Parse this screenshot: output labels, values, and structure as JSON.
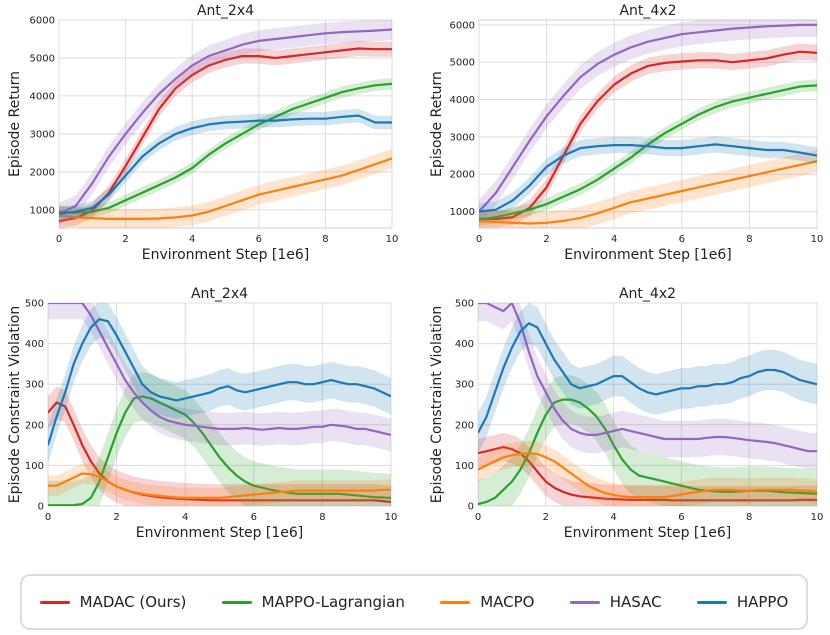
{
  "chart_data": [
    {
      "type": "line",
      "title": "Ant_2x4",
      "xlabel": "Environment Step [1e6]",
      "ylabel": "Episode Return",
      "xlim": [
        0,
        10
      ],
      "ylim": [
        520,
        6000
      ],
      "xticks": [
        "0",
        "2",
        "4",
        "6",
        "8",
        "10"
      ],
      "yticks": [
        "1000",
        "2000",
        "3000",
        "4000",
        "5000",
        "6000"
      ],
      "grid": true,
      "x": [
        0,
        0.5,
        1,
        1.5,
        2,
        2.5,
        3,
        3.5,
        4,
        4.5,
        5,
        5.5,
        6,
        6.5,
        7,
        7.5,
        8,
        8.5,
        9,
        9.5,
        10
      ],
      "series": [
        {
          "name": "MADAC (Ours)",
          "values": [
            700,
            780,
            980,
            1450,
            2150,
            2900,
            3650,
            4200,
            4550,
            4800,
            4950,
            5050,
            5050,
            5000,
            5050,
            5100,
            5150,
            5200,
            5250,
            5230,
            5230
          ],
          "band": 200
        },
        {
          "name": "MAPPO-Lagrangian",
          "values": [
            950,
            920,
            950,
            1050,
            1250,
            1450,
            1650,
            1850,
            2100,
            2450,
            2750,
            3000,
            3250,
            3450,
            3650,
            3800,
            3950,
            4100,
            4200,
            4280,
            4320
          ],
          "band": 150
        },
        {
          "name": "MACPO",
          "values": [
            850,
            800,
            780,
            760,
            760,
            760,
            770,
            800,
            850,
            950,
            1100,
            1250,
            1400,
            1500,
            1600,
            1700,
            1800,
            1900,
            2050,
            2200,
            2350
          ],
          "band": 260
        },
        {
          "name": "HASAC",
          "values": [
            900,
            1100,
            1700,
            2400,
            3000,
            3550,
            4050,
            4450,
            4800,
            5050,
            5200,
            5350,
            5450,
            5500,
            5550,
            5600,
            5650,
            5680,
            5700,
            5720,
            5750
          ],
          "band": 280
        },
        {
          "name": "HAPPO",
          "values": [
            900,
            950,
            1050,
            1400,
            1900,
            2400,
            2750,
            3000,
            3150,
            3250,
            3300,
            3320,
            3350,
            3350,
            3380,
            3400,
            3400,
            3450,
            3480,
            3300,
            3300
          ],
          "band": 180
        }
      ]
    },
    {
      "type": "line",
      "title": "Ant_4x2",
      "xlabel": "Environment Step [1e6]",
      "ylabel": "Episode Return",
      "xlim": [
        0,
        10
      ],
      "ylim": [
        560,
        6130
      ],
      "xticks": [
        "0",
        "2",
        "4",
        "6",
        "8",
        "10"
      ],
      "yticks": [
        "1000",
        "2000",
        "3000",
        "4000",
        "5000",
        "6000"
      ],
      "grid": true,
      "x": [
        0,
        0.5,
        1,
        1.5,
        2,
        2.5,
        3,
        3.5,
        4,
        4.5,
        5,
        5.5,
        6,
        6.5,
        7,
        7.5,
        8,
        8.5,
        9,
        9.5,
        10
      ],
      "series": [
        {
          "name": "MADAC (Ours)",
          "values": [
            800,
            800,
            850,
            1100,
            1650,
            2500,
            3350,
            3950,
            4400,
            4700,
            4900,
            4980,
            5020,
            5050,
            5050,
            5000,
            5050,
            5100,
            5200,
            5280,
            5250
          ],
          "band": 220
        },
        {
          "name": "MAPPO-Lagrangian",
          "values": [
            780,
            850,
            950,
            1050,
            1200,
            1400,
            1600,
            1850,
            2150,
            2450,
            2800,
            3100,
            3350,
            3600,
            3800,
            3950,
            4050,
            4150,
            4250,
            4350,
            4380
          ],
          "band": 160
        },
        {
          "name": "MACPO",
          "values": [
            750,
            720,
            700,
            680,
            700,
            750,
            830,
            950,
            1100,
            1250,
            1350,
            1450,
            1550,
            1650,
            1750,
            1850,
            1950,
            2050,
            2150,
            2250,
            2350
          ],
          "band": 300
        },
        {
          "name": "HASAC",
          "values": [
            1000,
            1500,
            2200,
            2900,
            3550,
            4100,
            4600,
            4950,
            5200,
            5400,
            5550,
            5650,
            5750,
            5800,
            5850,
            5900,
            5930,
            5960,
            5980,
            6000,
            6000
          ],
          "band": 320
        },
        {
          "name": "HAPPO",
          "values": [
            1000,
            1050,
            1300,
            1700,
            2200,
            2500,
            2700,
            2750,
            2780,
            2780,
            2750,
            2700,
            2700,
            2750,
            2800,
            2750,
            2700,
            2650,
            2650,
            2580,
            2500
          ],
          "band": 220
        }
      ]
    },
    {
      "type": "line",
      "title": "Ant_2x4",
      "xlabel": "Environment Step [1e6]",
      "ylabel": "Episode Constraint Violation",
      "xlim": [
        0,
        10
      ],
      "ylim": [
        0,
        500
      ],
      "xticks": [
        "0",
        "2",
        "4",
        "6",
        "8",
        "10"
      ],
      "yticks": [
        "0",
        "100",
        "200",
        "300",
        "400",
        "500"
      ],
      "grid": true,
      "x": [
        0,
        0.25,
        0.5,
        0.75,
        1,
        1.25,
        1.5,
        1.75,
        2,
        2.25,
        2.5,
        2.75,
        3,
        3.25,
        3.5,
        3.75,
        4,
        4.25,
        4.5,
        4.75,
        5,
        5.25,
        5.5,
        5.75,
        6,
        6.25,
        6.5,
        6.75,
        7,
        7.25,
        7.5,
        7.75,
        8,
        8.25,
        8.5,
        8.75,
        9,
        9.25,
        9.5,
        9.75,
        10
      ],
      "series": [
        {
          "name": "MADAC (Ours)",
          "values": [
            230,
            255,
            245,
            200,
            150,
            110,
            80,
            60,
            48,
            40,
            33,
            28,
            25,
            22,
            20,
            18,
            17,
            16,
            15,
            14,
            14,
            14,
            14,
            14,
            14,
            14,
            14,
            14,
            14,
            14,
            14,
            14,
            14,
            14,
            14,
            14,
            14,
            14,
            14,
            12,
            10
          ],
          "band": 40
        },
        {
          "name": "MAPPO-Lagrangian",
          "values": [
            2,
            2,
            2,
            2,
            5,
            20,
            60,
            120,
            180,
            230,
            265,
            270,
            265,
            255,
            245,
            235,
            225,
            205,
            180,
            150,
            120,
            95,
            75,
            60,
            50,
            45,
            40,
            36,
            33,
            30,
            30,
            30,
            30,
            30,
            30,
            28,
            26,
            24,
            22,
            21,
            20
          ],
          "band": 60
        },
        {
          "name": "MACPO",
          "values": [
            50,
            50,
            60,
            70,
            80,
            78,
            72,
            60,
            48,
            40,
            34,
            30,
            27,
            25,
            23,
            21,
            20,
            20,
            20,
            20,
            20,
            22,
            24,
            26,
            28,
            30,
            32,
            34,
            36,
            38,
            38,
            38,
            38,
            38,
            38,
            38,
            38,
            38,
            38,
            40,
            40
          ],
          "band": 25
        },
        {
          "name": "HASAC",
          "values": [
            500,
            500,
            500,
            500,
            500,
            470,
            430,
            390,
            350,
            310,
            280,
            255,
            235,
            220,
            210,
            205,
            200,
            198,
            195,
            192,
            190,
            190,
            190,
            192,
            190,
            188,
            190,
            192,
            190,
            190,
            192,
            195,
            195,
            200,
            198,
            195,
            190,
            190,
            185,
            180,
            175
          ],
          "band": 40
        },
        {
          "name": "HAPPO",
          "values": [
            150,
            220,
            280,
            350,
            400,
            440,
            460,
            455,
            420,
            380,
            340,
            300,
            280,
            270,
            265,
            260,
            265,
            270,
            275,
            280,
            290,
            295,
            285,
            280,
            285,
            290,
            295,
            300,
            305,
            305,
            300,
            300,
            305,
            310,
            305,
            300,
            300,
            295,
            290,
            280,
            270
          ],
          "band": 45
        }
      ]
    },
    {
      "type": "line",
      "title": "Ant_4x2",
      "xlabel": "Environment Step [1e6]",
      "ylabel": "Episode Constraint Violation",
      "xlim": [
        0,
        10
      ],
      "ylim": [
        0,
        500
      ],
      "xticks": [
        "0",
        "2",
        "4",
        "6",
        "8",
        "10"
      ],
      "yticks": [
        "0",
        "100",
        "200",
        "300",
        "400",
        "500"
      ],
      "grid": true,
      "x": [
        0,
        0.25,
        0.5,
        0.75,
        1,
        1.25,
        1.5,
        1.75,
        2,
        2.25,
        2.5,
        2.75,
        3,
        3.25,
        3.5,
        3.75,
        4,
        4.25,
        4.5,
        4.75,
        5,
        5.25,
        5.5,
        5.75,
        6,
        6.25,
        6.5,
        6.75,
        7,
        7.25,
        7.5,
        7.75,
        8,
        8.25,
        8.5,
        8.75,
        9,
        9.25,
        9.5,
        9.75,
        10
      ],
      "series": [
        {
          "name": "MADAC (Ours)",
          "values": [
            130,
            135,
            140,
            145,
            140,
            130,
            110,
            85,
            60,
            45,
            35,
            28,
            24,
            22,
            20,
            18,
            17,
            16,
            15,
            15,
            15,
            15,
            15,
            14,
            14,
            14,
            14,
            14,
            14,
            14,
            14,
            14,
            14,
            14,
            14,
            14,
            14,
            14,
            15,
            15,
            15
          ],
          "band": 35
        },
        {
          "name": "MAPPO-Lagrangian",
          "values": [
            5,
            10,
            20,
            40,
            60,
            90,
            130,
            180,
            225,
            255,
            262,
            262,
            255,
            240,
            220,
            190,
            150,
            115,
            90,
            75,
            70,
            65,
            60,
            55,
            50,
            45,
            40,
            38,
            36,
            35,
            35,
            36,
            38,
            38,
            38,
            36,
            34,
            33,
            32,
            31,
            30
          ],
          "band": 60
        },
        {
          "name": "MACPO",
          "values": [
            90,
            100,
            110,
            120,
            125,
            128,
            130,
            128,
            120,
            110,
            95,
            80,
            65,
            50,
            40,
            32,
            27,
            24,
            22,
            22,
            22,
            22,
            22,
            25,
            28,
            32,
            35,
            38,
            40,
            40,
            40,
            38,
            38,
            40,
            40,
            40,
            40,
            40,
            38,
            38,
            35
          ],
          "band": 30
        },
        {
          "name": "HASAC",
          "values": [
            500,
            500,
            490,
            480,
            500,
            450,
            380,
            320,
            280,
            240,
            210,
            190,
            180,
            175,
            175,
            180,
            185,
            190,
            185,
            180,
            175,
            170,
            165,
            165,
            165,
            165,
            165,
            168,
            170,
            170,
            168,
            165,
            162,
            160,
            158,
            155,
            150,
            145,
            140,
            135,
            135
          ],
          "band": 45
        },
        {
          "name": "HAPPO",
          "values": [
            180,
            220,
            280,
            340,
            390,
            430,
            450,
            440,
            400,
            360,
            330,
            300,
            290,
            295,
            300,
            310,
            320,
            320,
            305,
            290,
            280,
            275,
            280,
            285,
            290,
            290,
            295,
            295,
            300,
            300,
            305,
            315,
            320,
            330,
            335,
            335,
            330,
            320,
            310,
            305,
            300
          ],
          "band": 50
        }
      ]
    }
  ],
  "legend": [
    {
      "name": "MADAC (Ours)",
      "color": "#d62728"
    },
    {
      "name": "MAPPO-Lagrangian",
      "color": "#2ca02c"
    },
    {
      "name": "MACPO",
      "color": "#ff7f0e"
    },
    {
      "name": "HASAC",
      "color": "#9467bd"
    },
    {
      "name": "HAPPO",
      "color": "#1f77b4"
    }
  ]
}
